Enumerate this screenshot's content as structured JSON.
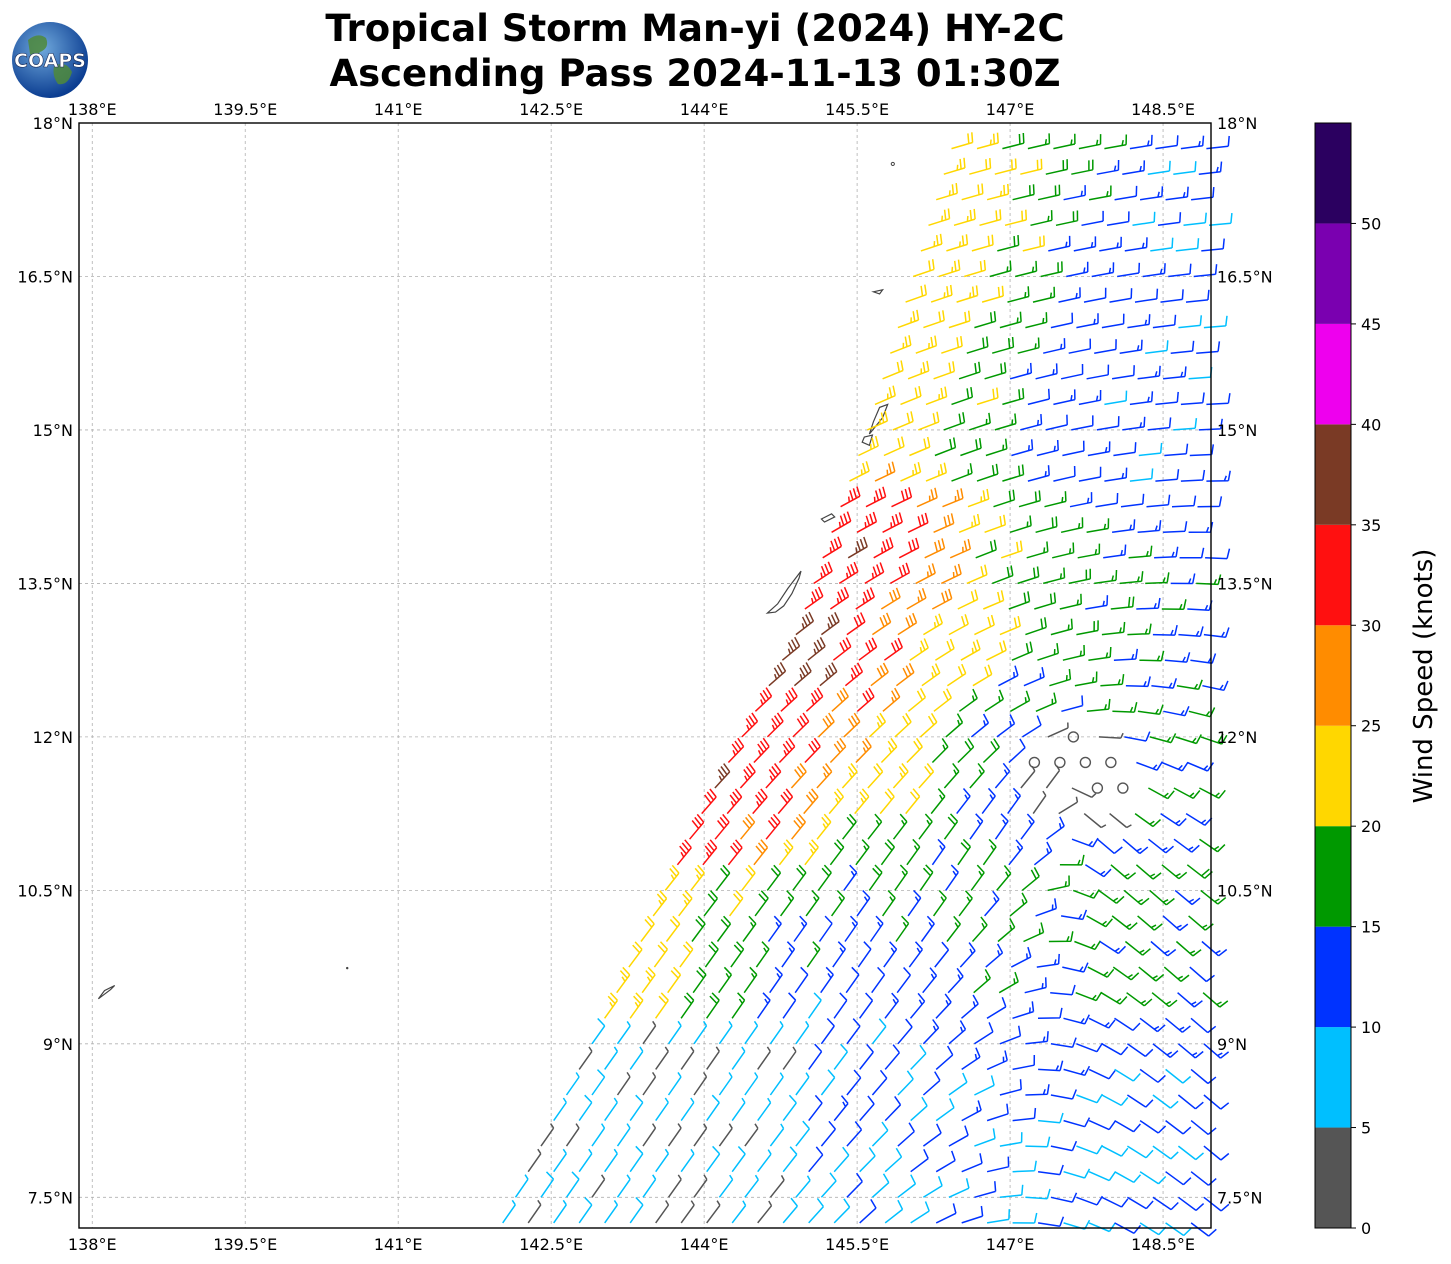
{
  "title": {
    "line1": "Tropical Storm Man-yi (2024) HY-2C",
    "line2": "Ascending Pass 2024-11-13 01:30Z"
  },
  "logo": {
    "text": "COAPS",
    "icon": "globe-logo-icon"
  },
  "map": {
    "lon_range": [
      137.87,
      148.97
    ],
    "lat_range": [
      7.2,
      18.0
    ],
    "lon_ticks": [
      138,
      139.5,
      141,
      142.5,
      144,
      145.5,
      147,
      148.5
    ],
    "lon_tick_labels": [
      "138°E",
      "139.5°E",
      "141°E",
      "142.5°E",
      "144°E",
      "145.5°E",
      "147°E",
      "148.5°E"
    ],
    "lat_ticks": [
      7.5,
      9,
      10.5,
      12,
      13.5,
      15,
      16.5,
      18
    ],
    "lat_tick_labels": [
      "7.5°N",
      "9°N",
      "10.5°N",
      "12°N",
      "13.5°N",
      "15°N",
      "16.5°N",
      "18°N"
    ],
    "grid": true,
    "grid_style": "dashed-gray",
    "land_outline_color": "#444444",
    "storm_center": {
      "lon": 147.6,
      "lat": 11.6
    },
    "swath_left_edge": [
      [
        142.0,
        7.2
      ],
      [
        143.0,
        9.2
      ],
      [
        144.0,
        11.3
      ],
      [
        144.9,
        13.0
      ],
      [
        145.6,
        15.0
      ],
      [
        146.5,
        18.0
      ]
    ],
    "swath_right_edge_lon": 148.97
  },
  "colorbar": {
    "label": "Wind Speed (knots)",
    "tick_labels": [
      "0",
      "5",
      "10",
      "15",
      "20",
      "25",
      "30",
      "35",
      "40",
      "45",
      "50"
    ],
    "levels": [
      0,
      5,
      10,
      15,
      20,
      25,
      30,
      35,
      40,
      45,
      50,
      55
    ],
    "colors": [
      "#555555",
      "#00bfff",
      "#0033ff",
      "#009900",
      "#ffd700",
      "#ff8c00",
      "#ff1010",
      "#7a3a25",
      "#ee00ee",
      "#7a00b0",
      "#2b0060"
    ]
  }
}
